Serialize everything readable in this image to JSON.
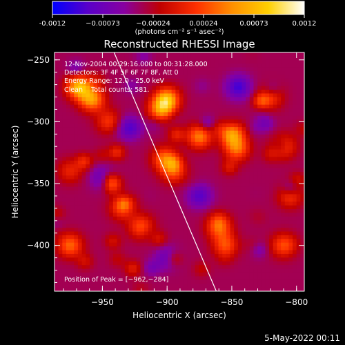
{
  "colorbar": {
    "tick_labels": [
      "-0.0012",
      "−0.00073",
      "−0.00024",
      "0.00024",
      "0.00073",
      "0.0012"
    ],
    "units": "(photons cm⁻² s⁻¹ asec⁻²)",
    "colors": [
      "#0000ff",
      "#5a00c8",
      "#8800a0",
      "#c00000",
      "#ff3000",
      "#ff9000",
      "#ffd000",
      "#ffffff"
    ]
  },
  "plot": {
    "title": "Reconstructed RHESSI Image",
    "info_lines": [
      "12-Nov-2004 00:29:16.000 to 00:31:28.000",
      "Detectors: 3F 4F 5F 6F 7F 8F, Att 0",
      "Energy Range: 12.0 - 25.0 keV",
      "Clean    Total counts: 581."
    ],
    "peak_label": "Position of Peak = [−962,−284]",
    "timestamp": "5-May-2022 00:11"
  },
  "chart_data": {
    "type": "heatmap",
    "title": "Reconstructed RHESSI Image",
    "xlabel": "Heliocentric X (arcsec)",
    "ylabel": "Heliocentric Y (arcsec)",
    "xlim": [
      -987,
      -794
    ],
    "ylim": [
      -437,
      -244
    ],
    "x_ticks": [
      -950,
      -900,
      -850,
      -800
    ],
    "x_tick_labels": [
      "−950",
      "−900",
      "−850",
      "−800"
    ],
    "y_ticks": [
      -250,
      -300,
      -350,
      -400
    ],
    "y_tick_labels": [
      "−250",
      "−300",
      "−350",
      "−400"
    ],
    "color_range": [
      -0.0012,
      0.0012
    ],
    "limb_line": {
      "x": [
        -941,
        -862
      ],
      "y": [
        -244,
        -437
      ]
    },
    "peak": {
      "x": -962,
      "y": -284
    },
    "bright_regions": [
      {
        "x": -968,
        "y": -272,
        "value": 0.0011
      },
      {
        "x": -958,
        "y": -282,
        "value": 0.0009
      },
      {
        "x": -900,
        "y": -282,
        "value": 0.001
      },
      {
        "x": -905,
        "y": -290,
        "value": 0.0008
      },
      {
        "x": -875,
        "y": -312,
        "value": 0.0008
      },
      {
        "x": -850,
        "y": -310,
        "value": 0.0009
      },
      {
        "x": -846,
        "y": -322,
        "value": 0.0007
      },
      {
        "x": -902,
        "y": -330,
        "value": 0.0007
      },
      {
        "x": -895,
        "y": -340,
        "value": 0.0006
      },
      {
        "x": -935,
        "y": -370,
        "value": 0.0005
      },
      {
        "x": -920,
        "y": -385,
        "value": 0.0006
      },
      {
        "x": -860,
        "y": -385,
        "value": 0.0007
      },
      {
        "x": -855,
        "y": -400,
        "value": 0.0006
      },
      {
        "x": -810,
        "y": -320,
        "value": 0.0006
      },
      {
        "x": -805,
        "y": -360,
        "value": 0.0005
      },
      {
        "x": -810,
        "y": -400,
        "value": 0.0006
      },
      {
        "x": -975,
        "y": -400,
        "value": 0.0007
      },
      {
        "x": -975,
        "y": -340,
        "value": 0.0004
      },
      {
        "x": -945,
        "y": -300,
        "value": 0.0005
      },
      {
        "x": -820,
        "y": -280,
        "value": 0.0005
      }
    ],
    "dark_regions": [
      {
        "x": -845,
        "y": -272,
        "value": -0.0006
      },
      {
        "x": -930,
        "y": -305,
        "value": -0.0005
      },
      {
        "x": -875,
        "y": -360,
        "value": -0.0005
      },
      {
        "x": -950,
        "y": -345,
        "value": -0.0004
      },
      {
        "x": -900,
        "y": -410,
        "value": -0.0004
      }
    ]
  }
}
